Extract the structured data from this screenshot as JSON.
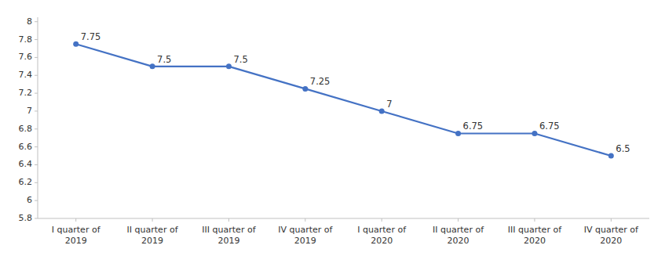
{
  "chart_data": {
    "type": "line",
    "categories": [
      "I quarter of\n2019",
      "II quarter of\n2019",
      "III quarter of\n2019",
      "IV quarter of\n2019",
      "I quarter of\n2020",
      "II quarter of\n2020",
      "III quarter of\n2020",
      "IV quarter of\n2020"
    ],
    "values": [
      7.75,
      7.5,
      7.5,
      7.25,
      7.0,
      6.75,
      6.75,
      6.5
    ],
    "color": "#4472C4",
    "marker": "circle",
    "ylim": [
      5.8,
      8.05
    ],
    "yticks": [
      5.8,
      6,
      6.2,
      6.4,
      6.6,
      6.8,
      7,
      7.2,
      7.4,
      7.6,
      7.8,
      8
    ],
    "grid": false,
    "data_labels": true
  }
}
